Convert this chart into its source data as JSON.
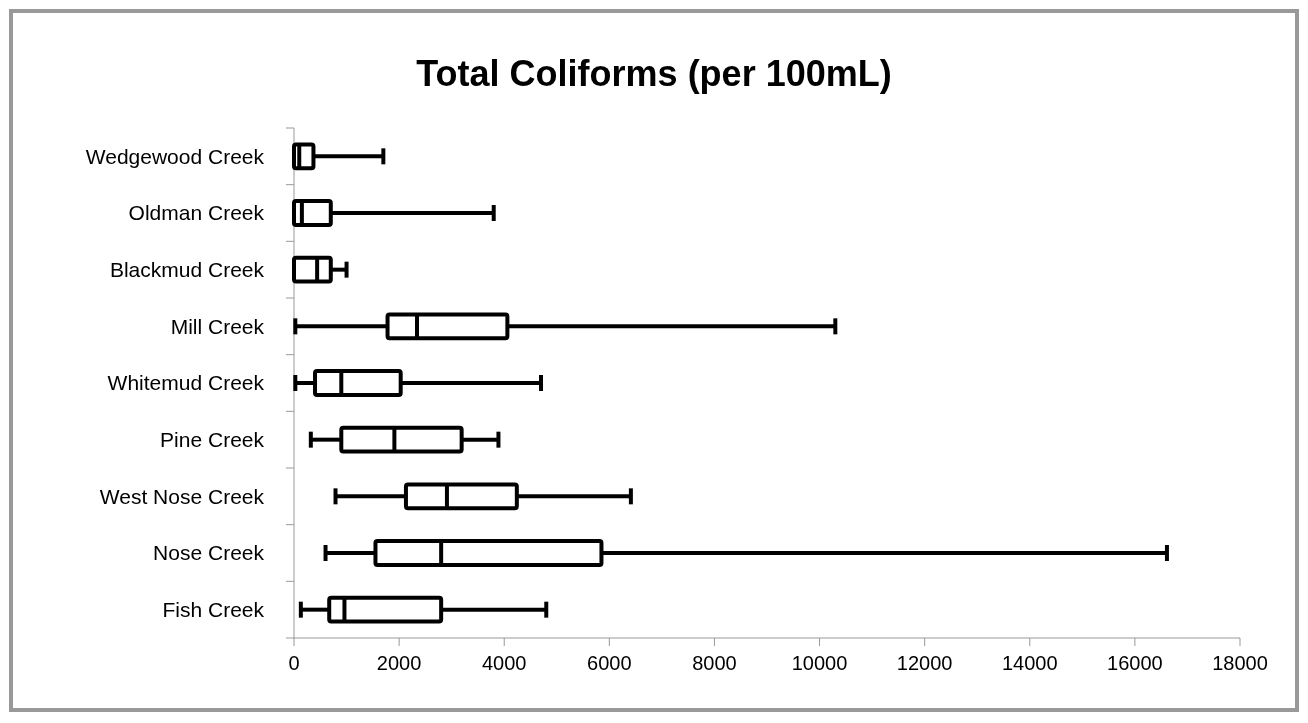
{
  "chart_data": {
    "type": "box",
    "orientation": "horizontal",
    "title": "Total Coliforms (per 100mL)",
    "categories": [
      "Wedgewood Creek",
      "Oldman Creek",
      "Blackmud Creek",
      "Mill Creek",
      "Whitemud Creek",
      "Pine Creek",
      "West Nose Creek",
      "Nose Creek",
      "Fish Creek"
    ],
    "boxes": [
      {
        "low": 0,
        "q1": 0,
        "median": 100,
        "q3": 370,
        "high": 1700
      },
      {
        "low": 0,
        "q1": 0,
        "median": 150,
        "q3": 700,
        "high": 3800
      },
      {
        "low": 0,
        "q1": 0,
        "median": 440,
        "q3": 700,
        "high": 1000
      },
      {
        "low": 25,
        "q1": 1780,
        "median": 2340,
        "q3": 4060,
        "high": 10300
      },
      {
        "low": 25,
        "q1": 400,
        "median": 900,
        "q3": 2030,
        "high": 4700
      },
      {
        "low": 320,
        "q1": 900,
        "median": 1910,
        "q3": 3190,
        "high": 3890
      },
      {
        "low": 790,
        "q1": 2130,
        "median": 2910,
        "q3": 4240,
        "high": 6410
      },
      {
        "low": 600,
        "q1": 1550,
        "median": 2800,
        "q3": 5850,
        "high": 16610
      },
      {
        "low": 130,
        "q1": 670,
        "median": 960,
        "q3": 2800,
        "high": 4800
      }
    ],
    "color": "#000000",
    "xlim": [
      0,
      18000
    ],
    "xticks": [
      0,
      2000,
      4000,
      6000,
      8000,
      10000,
      12000,
      14000,
      16000,
      18000
    ],
    "grid": false
  }
}
